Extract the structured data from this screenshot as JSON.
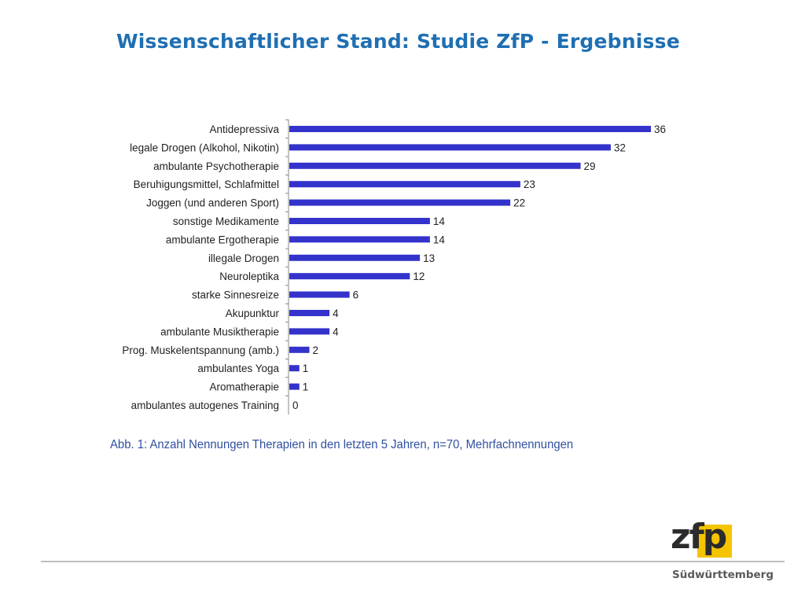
{
  "slide": {
    "title": "Wissenschaftlicher Stand: Studie ZfP - Ergebnisse",
    "caption": "Abb. 1: Anzahl Nennungen Therapien in den letzten 5 Jahren, n=70, Mehrfachnennungen"
  },
  "logo": {
    "text": "zfp",
    "subtitle": "Südwürttemberg",
    "accent_color": "#f5c400"
  },
  "colors": {
    "bar": "#3333cc",
    "title": "#1f6fb2",
    "caption": "#2f4fa0",
    "axis": "#888888"
  },
  "chart_data": {
    "type": "bar",
    "orientation": "horizontal",
    "title": "",
    "xlabel": "",
    "ylabel": "",
    "xlim": [
      0,
      36
    ],
    "grid": false,
    "legend": "none",
    "categories": [
      "Antidepressiva",
      "legale Drogen (Alkohol, Nikotin)",
      "ambulante Psychotherapie",
      "Beruhigungsmittel, Schlafmittel",
      "Joggen (und anderen Sport)",
      "sonstige Medikamente",
      "ambulante Ergotherapie",
      "illegale Drogen",
      "Neuroleptika",
      "starke Sinnesreize",
      "Akupunktur",
      "ambulante Musiktherapie",
      "Prog. Muskelentspannung (amb.)",
      "ambulantes Yoga",
      "Aromatherapie",
      "ambulantes autogenes Training"
    ],
    "values": [
      36,
      32,
      29,
      23,
      22,
      14,
      14,
      13,
      12,
      6,
      4,
      4,
      2,
      1,
      1,
      0
    ]
  }
}
